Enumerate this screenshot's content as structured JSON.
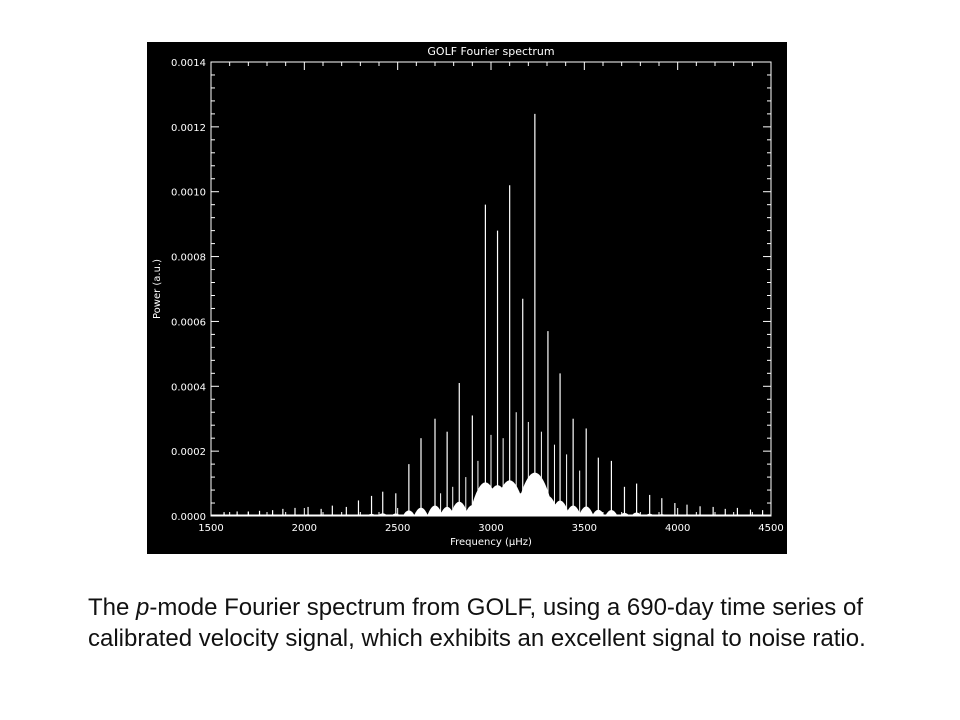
{
  "chart_data": {
    "type": "line",
    "title": "GOLF Fourier spectrum",
    "xlabel": "Frequency (μHz)",
    "ylabel": "Power (a.u.)",
    "xlim": [
      1500,
      4500
    ],
    "ylim": [
      0,
      0.0014
    ],
    "x_ticks": [
      1500,
      2000,
      2500,
      3000,
      3500,
      4000,
      4500
    ],
    "y_ticks": [
      0.0,
      0.0002,
      0.0004,
      0.0006,
      0.0008,
      0.001,
      0.0012,
      0.0014
    ],
    "x_tick_labels": [
      "1500",
      "2000",
      "2500",
      "3000",
      "3500",
      "4000",
      "4500"
    ],
    "y_tick_labels": [
      "0.0000",
      "0.0002",
      "0.0004",
      "0.0006",
      "0.0008",
      "0.0010",
      "0.0012",
      "0.0014"
    ],
    "background": "#000000",
    "line_color": "#ffffff",
    "grid": false,
    "peaks": [
      {
        "x": 1570,
        "y": 1.2e-05
      },
      {
        "x": 1640,
        "y": 1.4e-05
      },
      {
        "x": 1700,
        "y": 1.4e-05
      },
      {
        "x": 1760,
        "y": 1.6e-05
      },
      {
        "x": 1830,
        "y": 1.8e-05
      },
      {
        "x": 1885,
        "y": 2.2e-05
      },
      {
        "x": 1950,
        "y": 2.5e-05
      },
      {
        "x": 2020,
        "y": 2.8e-05
      },
      {
        "x": 2090,
        "y": 2.2e-05
      },
      {
        "x": 2150,
        "y": 3.2e-05
      },
      {
        "x": 2225,
        "y": 2.8e-05
      },
      {
        "x": 2290,
        "y": 4.8e-05
      },
      {
        "x": 2360,
        "y": 6.2e-05
      },
      {
        "x": 2420,
        "y": 7.5e-05
      },
      {
        "x": 2490,
        "y": 7e-05
      },
      {
        "x": 2560,
        "y": 0.00016
      },
      {
        "x": 2625,
        "y": 0.00024
      },
      {
        "x": 2700,
        "y": 0.0003
      },
      {
        "x": 2765,
        "y": 0.00026
      },
      {
        "x": 2830,
        "y": 0.00041
      },
      {
        "x": 2900,
        "y": 0.00031
      },
      {
        "x": 2970,
        "y": 0.00096
      },
      {
        "x": 3035,
        "y": 0.00088
      },
      {
        "x": 3100,
        "y": 0.00102
      },
      {
        "x": 3170,
        "y": 0.00067
      },
      {
        "x": 3235,
        "y": 0.00124
      },
      {
        "x": 3305,
        "y": 0.00057
      },
      {
        "x": 3370,
        "y": 0.00044
      },
      {
        "x": 3440,
        "y": 0.0003
      },
      {
        "x": 3510,
        "y": 0.00027
      },
      {
        "x": 3575,
        "y": 0.00018
      },
      {
        "x": 3645,
        "y": 0.00017
      },
      {
        "x": 3715,
        "y": 9e-05
      },
      {
        "x": 3780,
        "y": 0.0001
      },
      {
        "x": 3850,
        "y": 6.5e-05
      },
      {
        "x": 3915,
        "y": 5.5e-05
      },
      {
        "x": 3985,
        "y": 4e-05
      },
      {
        "x": 4050,
        "y": 3.5e-05
      },
      {
        "x": 4120,
        "y": 3e-05
      },
      {
        "x": 4190,
        "y": 2.8e-05
      },
      {
        "x": 4255,
        "y": 2.2e-05
      },
      {
        "x": 4320,
        "y": 2.5e-05
      },
      {
        "x": 4390,
        "y": 2e-05
      },
      {
        "x": 4455,
        "y": 1.8e-05
      }
    ],
    "secondary_peaks": [
      {
        "x": 2930,
        "y": 0.00017
      },
      {
        "x": 3000,
        "y": 0.00025
      },
      {
        "x": 3065,
        "y": 0.00024
      },
      {
        "x": 3135,
        "y": 0.00032
      },
      {
        "x": 3200,
        "y": 0.00029
      },
      {
        "x": 3270,
        "y": 0.00026
      },
      {
        "x": 3340,
        "y": 0.00022
      },
      {
        "x": 3405,
        "y": 0.00019
      },
      {
        "x": 3475,
        "y": 0.00014
      },
      {
        "x": 2865,
        "y": 0.00012
      },
      {
        "x": 2795,
        "y": 9e-05
      },
      {
        "x": 2730,
        "y": 7e-05
      }
    ]
  },
  "caption": {
    "prefix": "The ",
    "italic": "p",
    "rest": "-mode Fourier spectrum from GOLF, using a 690-day time series of calibrated velocity signal, which exhibits an excellent signal to noise ratio."
  }
}
